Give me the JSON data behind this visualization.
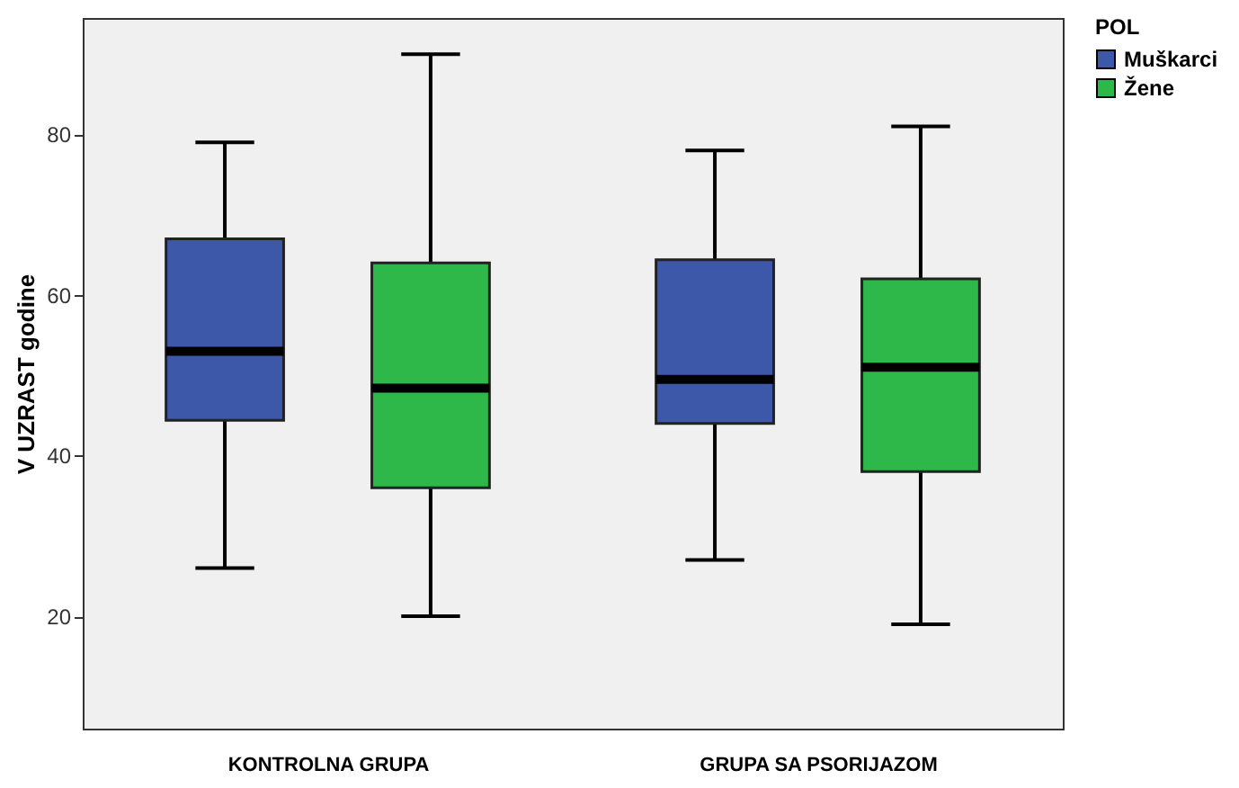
{
  "chart_data": {
    "type": "box",
    "ylabel": "V UZRAST godine",
    "legend_title": "POL",
    "legend": "top right",
    "grid": false,
    "categories": [
      "KONTROLNA GRUPA",
      "GRUPA SA PSORIJAZOM"
    ],
    "ylim": [
      6,
      94.5
    ],
    "yticks": [
      20,
      40,
      60,
      80
    ],
    "series": [
      {
        "name": "Muškarci",
        "color": "#3d58a9",
        "boxes": [
          {
            "low": 26,
            "q1": 44.4,
            "median": 53,
            "q3": 67,
            "high": 79
          },
          {
            "low": 27,
            "q1": 44,
            "median": 49.5,
            "q3": 64.4,
            "high": 78
          }
        ]
      },
      {
        "name": "Žene",
        "color": "#2fb84a",
        "boxes": [
          {
            "low": 20,
            "q1": 36,
            "median": 48.4,
            "q3": 64,
            "high": 90
          },
          {
            "low": 19,
            "q1": 38,
            "median": 51,
            "q3": 62,
            "high": 81
          }
        ]
      }
    ]
  }
}
